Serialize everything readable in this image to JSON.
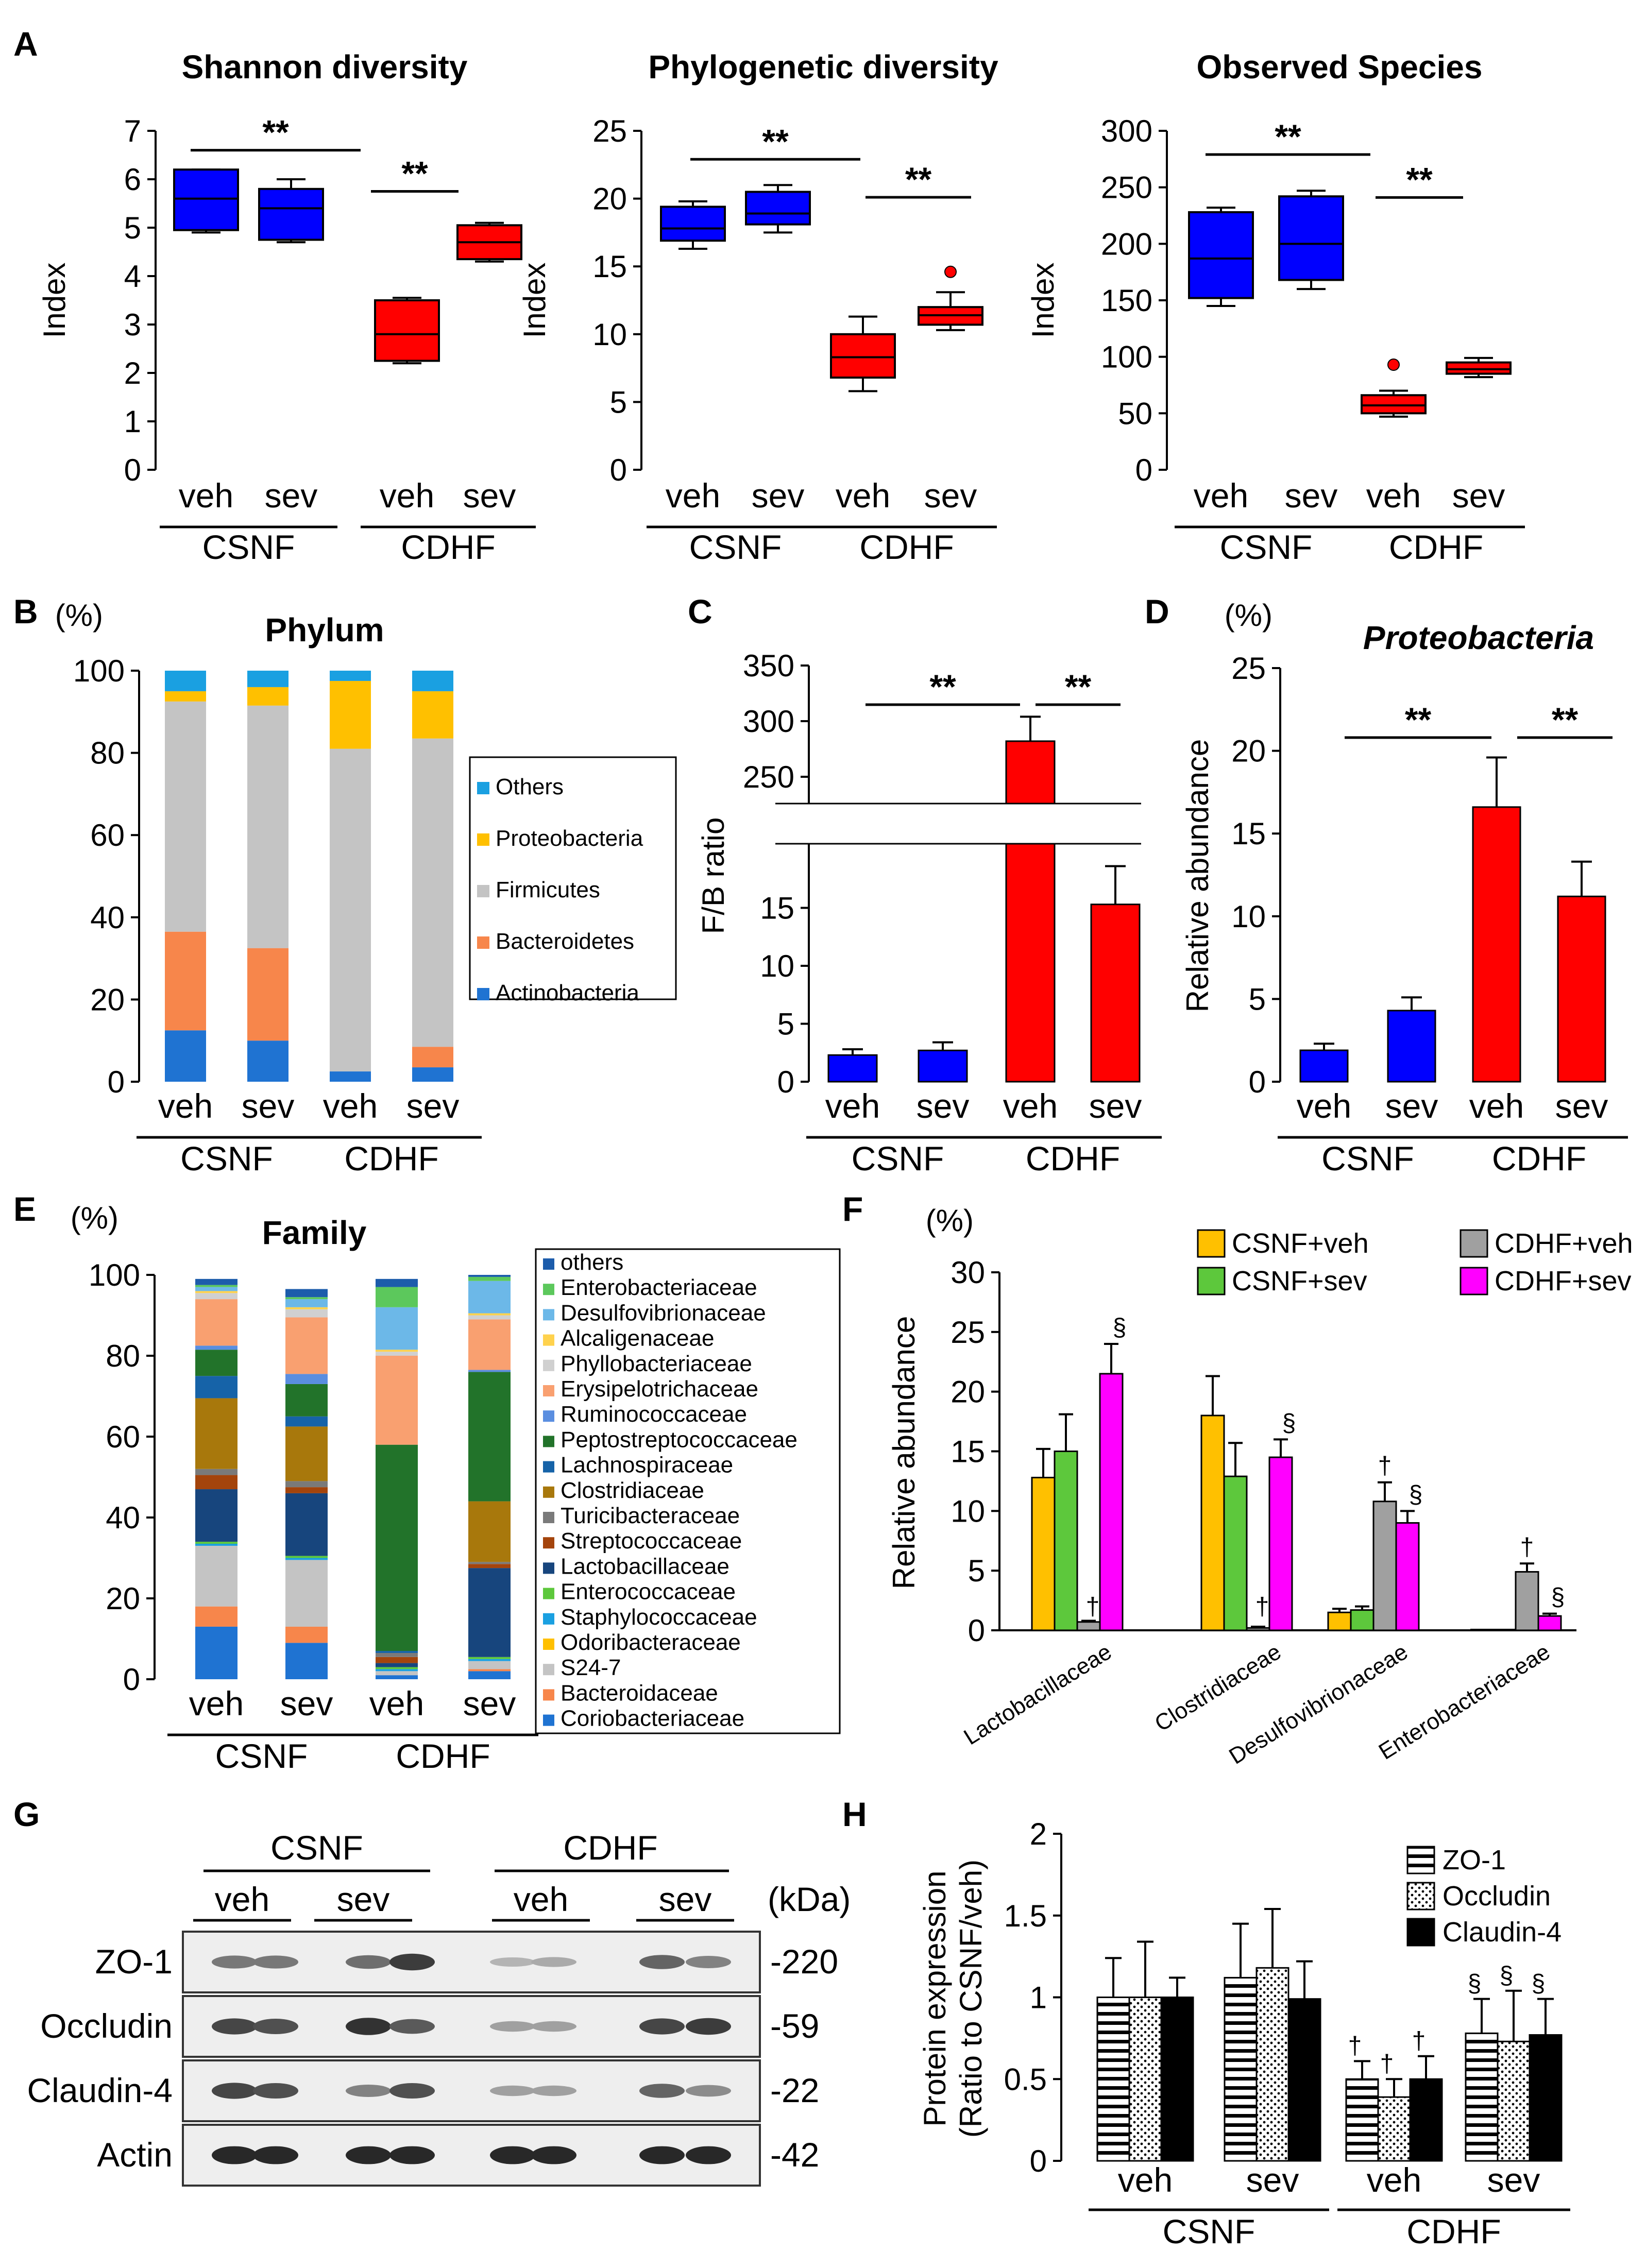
{
  "colors": {
    "blue": "#0000ff",
    "red": "#ff0000",
    "csnf_veh": "#ffc000",
    "csnf_sev": "#5dc83c",
    "cdhf_veh": "#a0a0a0",
    "cdhf_sev": "#ff00ff"
  },
  "panel_letters": {
    "A": "A",
    "B": "B",
    "C": "C",
    "D": "D",
    "E": "E",
    "F": "F",
    "G": "G",
    "H": "H"
  },
  "common": {
    "veh": "veh",
    "sev": "sev",
    "csnf": "CSNF",
    "cdhf": "CDHF",
    "sig": "**",
    "pct": "(%)",
    "dagger": "†",
    "section": "§"
  },
  "chart_data": [
    {
      "id": "A1",
      "type": "box",
      "title": "Shannon diversity",
      "ylabel": "Index",
      "ylim": [
        0,
        7
      ],
      "yticks": [
        0,
        1,
        2,
        3,
        4,
        5,
        6,
        7
      ],
      "categories": [
        "veh",
        "sev",
        "veh",
        "sev"
      ],
      "groups": [
        "CSNF",
        "CDHF"
      ],
      "boxes": [
        {
          "min": 4.9,
          "q1": 4.95,
          "median": 5.6,
          "q3": 6.2,
          "max": 6.2,
          "color": "blue"
        },
        {
          "min": 4.7,
          "q1": 4.75,
          "median": 5.4,
          "q3": 5.8,
          "max": 6.0,
          "color": "blue"
        },
        {
          "min": 2.2,
          "q1": 2.25,
          "median": 2.8,
          "q3": 3.5,
          "max": 3.55,
          "color": "red"
        },
        {
          "min": 4.3,
          "q1": 4.35,
          "median": 4.7,
          "q3": 5.05,
          "max": 5.1,
          "color": "red"
        }
      ],
      "outliers": []
    },
    {
      "id": "A2",
      "type": "box",
      "title": "Phylogenetic diversity",
      "ylabel": "Index",
      "ylim": [
        0,
        25
      ],
      "yticks": [
        0,
        5,
        10,
        15,
        20,
        25
      ],
      "categories": [
        "veh",
        "sev",
        "veh",
        "sev"
      ],
      "groups": [
        "CSNF",
        "CDHF"
      ],
      "boxes": [
        {
          "min": 16.3,
          "q1": 16.9,
          "median": 17.8,
          "q3": 19.4,
          "max": 19.8,
          "color": "blue"
        },
        {
          "min": 17.5,
          "q1": 18.1,
          "median": 18.9,
          "q3": 20.5,
          "max": 21.0,
          "color": "blue"
        },
        {
          "min": 5.8,
          "q1": 6.8,
          "median": 8.3,
          "q3": 10.0,
          "max": 11.3,
          "color": "red"
        },
        {
          "min": 10.3,
          "q1": 10.7,
          "median": 11.4,
          "q3": 12.0,
          "max": 13.1,
          "color": "red"
        }
      ],
      "outliers": [
        {
          "box": 3,
          "value": 14.6
        }
      ]
    },
    {
      "id": "A3",
      "type": "box",
      "title": "Observed Species",
      "ylabel": "Index",
      "ylim": [
        0,
        300
      ],
      "yticks": [
        0,
        50,
        100,
        150,
        200,
        250,
        300
      ],
      "categories": [
        "veh",
        "sev",
        "veh",
        "sev"
      ],
      "groups": [
        "CSNF",
        "CDHF"
      ],
      "boxes": [
        {
          "min": 145,
          "q1": 152,
          "median": 187,
          "q3": 228,
          "max": 232,
          "color": "blue"
        },
        {
          "min": 160,
          "q1": 168,
          "median": 200,
          "q3": 242,
          "max": 247,
          "color": "blue"
        },
        {
          "min": 47,
          "q1": 50,
          "median": 57,
          "q3": 66,
          "max": 70,
          "color": "red"
        },
        {
          "min": 82,
          "q1": 85,
          "median": 89,
          "q3": 95,
          "max": 99,
          "color": "red"
        }
      ],
      "outliers": [
        {
          "box": 2,
          "value": 93
        }
      ]
    },
    {
      "id": "B",
      "type": "stacked_bar",
      "title": "Phylum",
      "ylabel": "(%)",
      "ylim": [
        0,
        100
      ],
      "yticks": [
        0,
        20,
        40,
        60,
        80,
        100
      ],
      "categories": [
        "veh",
        "sev",
        "veh",
        "sev"
      ],
      "groups": [
        "CSNF",
        "CDHF"
      ],
      "series": [
        {
          "name": "Actinobacteria",
          "color": "#1f73d2",
          "values": [
            12.5,
            10.0,
            2.5,
            3.5
          ]
        },
        {
          "name": "Bacteroidetes",
          "color": "#f7864b",
          "values": [
            24.0,
            22.5,
            0.0,
            5.0
          ]
        },
        {
          "name": "Firmicutes",
          "color": "#c4c4c4",
          "values": [
            56.0,
            59.0,
            78.5,
            75.0
          ]
        },
        {
          "name": "Proteobacteria",
          "color": "#ffc000",
          "values": [
            2.5,
            4.5,
            16.5,
            11.5
          ]
        },
        {
          "name": "Others",
          "color": "#1aa0e1",
          "values": [
            5.0,
            4.0,
            2.5,
            5.0
          ]
        }
      ],
      "legend_order": [
        "Others",
        "Proteobacteria",
        "Firmicutes",
        "Bacteroidetes",
        "Actinobacteria"
      ]
    },
    {
      "id": "C",
      "type": "bar",
      "title": "",
      "ylabel": "F/B ratio",
      "axis_break": {
        "lower": [
          0,
          20
        ],
        "upper": [
          235,
          350
        ]
      },
      "yticks_lower": [
        0,
        5,
        10,
        15
      ],
      "yticks_upper": [
        250,
        300,
        350
      ],
      "categories": [
        "veh",
        "sev",
        "veh",
        "sev"
      ],
      "groups": [
        "CSNF",
        "CDHF"
      ],
      "values": [
        2.3,
        2.7,
        282,
        15.3
      ],
      "errors": [
        0.5,
        0.7,
        22,
        3.3
      ],
      "colors": [
        "blue",
        "blue",
        "red",
        "red"
      ]
    },
    {
      "id": "D",
      "type": "bar",
      "title": "Proteobacteria",
      "ylabel": "Relative abundance",
      "unit": "(%)",
      "ylim": [
        0,
        25
      ],
      "yticks": [
        0,
        5,
        10,
        15,
        20,
        25
      ],
      "categories": [
        "veh",
        "sev",
        "veh",
        "sev"
      ],
      "groups": [
        "CSNF",
        "CDHF"
      ],
      "values": [
        1.9,
        4.3,
        16.6,
        11.2
      ],
      "errors": [
        0.4,
        0.8,
        3.0,
        2.1
      ],
      "colors": [
        "blue",
        "blue",
        "red",
        "red"
      ]
    },
    {
      "id": "E",
      "type": "stacked_bar",
      "title": "Family",
      "ylabel": "(%)",
      "ylim": [
        0,
        100
      ],
      "yticks": [
        0,
        20,
        40,
        60,
        80,
        100
      ],
      "categories": [
        "veh",
        "sev",
        "veh",
        "sev"
      ],
      "groups": [
        "CSNF",
        "CDHF"
      ],
      "series": [
        {
          "name": "Coriobacteriaceae",
          "color": "#1f73d2",
          "values": [
            13.0,
            9.0,
            1.0,
            2.0
          ]
        },
        {
          "name": "Bacteroidaceae",
          "color": "#f7864b",
          "values": [
            5.0,
            4.0,
            0.0,
            0.5
          ]
        },
        {
          "name": "S24-7",
          "color": "#c4c4c4",
          "values": [
            15.0,
            16.5,
            1.0,
            2.0
          ]
        },
        {
          "name": "Odoribacteraceae",
          "color": "#ffc000",
          "values": [
            0.0,
            0.0,
            0.0,
            0.0
          ]
        },
        {
          "name": "Staphylococcaceae",
          "color": "#1aa0e1",
          "values": [
            0.5,
            0.5,
            0.5,
            0.5
          ]
        },
        {
          "name": "Enterococcaceae",
          "color": "#5dc83c",
          "values": [
            0.5,
            0.5,
            0.5,
            0.5
          ]
        },
        {
          "name": "Lactobacillaceae",
          "color": "#17457d",
          "values": [
            13.0,
            15.5,
            1.0,
            22.0
          ]
        },
        {
          "name": "Streptococcaceae",
          "color": "#a4440c",
          "values": [
            3.5,
            1.5,
            1.5,
            1.0
          ]
        },
        {
          "name": "Turicibacteraceae",
          "color": "#7a7a7a",
          "values": [
            1.5,
            1.5,
            1.0,
            0.5
          ]
        },
        {
          "name": "Clostridiaceae",
          "color": "#a8780c",
          "values": [
            17.5,
            13.5,
            0.0,
            15.0
          ]
        },
        {
          "name": "Lachnospiraceae",
          "color": "#1663a8",
          "values": [
            5.5,
            2.5,
            0.5,
            0.0
          ]
        },
        {
          "name": "Peptostreptococcaceae",
          "color": "#22732a",
          "values": [
            6.5,
            8.0,
            51.0,
            32.0
          ]
        },
        {
          "name": "Ruminococcaceae",
          "color": "#5a8ee0",
          "values": [
            1.0,
            2.5,
            0.0,
            0.5
          ]
        },
        {
          "name": "Erysipelotrichaceae",
          "color": "#f9a070",
          "values": [
            11.5,
            14.0,
            22.0,
            12.5
          ]
        },
        {
          "name": "Phyllobacteriaceae",
          "color": "#d0d0d0",
          "values": [
            1.5,
            2.0,
            1.0,
            1.0
          ]
        },
        {
          "name": "Alcaligenaceae",
          "color": "#ffd24d",
          "values": [
            0.5,
            0.5,
            0.5,
            0.5
          ]
        },
        {
          "name": "Desulfovibrionaceae",
          "color": "#6cb8e8",
          "values": [
            1.0,
            2.0,
            10.5,
            8.0
          ]
        },
        {
          "name": "Enterobacteriaceae",
          "color": "#5cc85c",
          "values": [
            0.5,
            0.5,
            5.0,
            1.0
          ]
        },
        {
          "name": "others",
          "color": "#1c5cab",
          "values": [
            1.5,
            2.0,
            2.0,
            0.5
          ]
        }
      ],
      "legend_order": [
        "others",
        "Enterobacteriaceae",
        "Desulfovibrionaceae",
        "Alcaligenaceae",
        "Phyllobacteriaceae",
        "Erysipelotrichaceae",
        "Ruminococcaceae",
        "Peptostreptococcaceae",
        "Lachnospiraceae",
        "Clostridiaceae",
        "Turicibacteraceae",
        "Streptococcaceae",
        "Lactobacillaceae",
        "Enterococcaceae",
        "Staphylococcaceae",
        "Odoribacteraceae",
        "S24-7",
        "Bacteroidaceae",
        "Coriobacteriaceae"
      ]
    },
    {
      "id": "F",
      "type": "grouped_bar",
      "title": "",
      "ylabel": "Relative abundance",
      "unit": "(%)",
      "ylim": [
        0,
        30
      ],
      "yticks": [
        0,
        5,
        10,
        15,
        20,
        25,
        30
      ],
      "categories": [
        "Lactobacillaceae",
        "Clostridiaceae",
        "Desulfovibrionaceae",
        "Enterobacteriaceae"
      ],
      "series": [
        {
          "name": "CSNF+veh",
          "color": "csnf_veh",
          "values": [
            12.8,
            18.0,
            1.5,
            0.1
          ],
          "errors": [
            2.4,
            3.3,
            0.3,
            0.0
          ]
        },
        {
          "name": "CSNF+sev",
          "color": "csnf_sev",
          "values": [
            15.0,
            12.9,
            1.7,
            0.1
          ],
          "errors": [
            3.1,
            2.8,
            0.3,
            0.0
          ]
        },
        {
          "name": "CDHF+veh",
          "color": "cdhf_veh",
          "values": [
            0.7,
            0.2,
            10.8,
            4.9
          ],
          "errors": [
            0.1,
            0.1,
            1.6,
            0.7
          ]
        },
        {
          "name": "CDHF+sev",
          "color": "cdhf_sev",
          "values": [
            21.5,
            14.5,
            9.0,
            1.2
          ],
          "errors": [
            2.5,
            1.5,
            1.0,
            0.2
          ]
        }
      ],
      "marks": [
        {
          "category": 0,
          "series": 2,
          "text": "†"
        },
        {
          "category": 0,
          "series": 3,
          "text": "§"
        },
        {
          "category": 1,
          "series": 2,
          "text": "†"
        },
        {
          "category": 1,
          "series": 3,
          "text": "§"
        },
        {
          "category": 2,
          "series": 2,
          "text": "†"
        },
        {
          "category": 2,
          "series": 3,
          "text": "§"
        },
        {
          "category": 3,
          "series": 2,
          "text": "†"
        },
        {
          "category": 3,
          "series": 3,
          "text": "§"
        }
      ]
    },
    {
      "id": "H",
      "type": "grouped_bar",
      "title": "",
      "ylabel": [
        "Protein expression",
        "(Ratio to CSNF/veh)"
      ],
      "ylim": [
        0,
        2
      ],
      "yticks": [
        0,
        0.5,
        1,
        1.5,
        2
      ],
      "categories": [
        "veh",
        "sev",
        "veh",
        "sev"
      ],
      "groups": [
        "CSNF",
        "CDHF"
      ],
      "series": [
        {
          "name": "ZO-1",
          "pattern": "stripes",
          "values": [
            1.0,
            1.12,
            0.5,
            0.78
          ],
          "errors": [
            0.24,
            0.33,
            0.11,
            0.21
          ]
        },
        {
          "name": "Occludin",
          "pattern": "dots",
          "values": [
            1.0,
            1.18,
            0.39,
            0.73
          ],
          "errors": [
            0.34,
            0.36,
            0.11,
            0.31
          ]
        },
        {
          "name": "Claudin-4",
          "pattern": "solid",
          "values": [
            1.0,
            0.99,
            0.5,
            0.77
          ],
          "errors": [
            0.12,
            0.23,
            0.14,
            0.22
          ]
        }
      ],
      "marks": [
        {
          "category": 2,
          "series": 0,
          "text": "†"
        },
        {
          "category": 2,
          "series": 1,
          "text": "†"
        },
        {
          "category": 2,
          "series": 2,
          "text": "†"
        },
        {
          "category": 3,
          "series": 0,
          "text": "§"
        },
        {
          "category": 3,
          "series": 1,
          "text": "§"
        },
        {
          "category": 3,
          "series": 2,
          "text": "§"
        }
      ]
    }
  ],
  "western_blot": {
    "groups": [
      "CSNF",
      "CDHF"
    ],
    "lanes": [
      "veh",
      "sev",
      "veh",
      "sev"
    ],
    "unit": "(kDa)",
    "rows": [
      {
        "protein": "ZO-1",
        "kda": "-220",
        "intensity": [
          0.55,
          0.55,
          0.6,
          0.85,
          0.25,
          0.3,
          0.65,
          0.5
        ]
      },
      {
        "protein": "Occludin",
        "kda": "-59",
        "intensity": [
          0.8,
          0.75,
          0.9,
          0.7,
          0.35,
          0.35,
          0.8,
          0.85
        ]
      },
      {
        "protein": "Claudin-4",
        "kda": "-22",
        "intensity": [
          0.8,
          0.75,
          0.5,
          0.75,
          0.35,
          0.35,
          0.65,
          0.45
        ]
      },
      {
        "protein": "Actin",
        "kda": "-42",
        "intensity": [
          0.95,
          0.95,
          0.95,
          0.95,
          0.95,
          0.95,
          0.95,
          0.95
        ]
      }
    ]
  }
}
